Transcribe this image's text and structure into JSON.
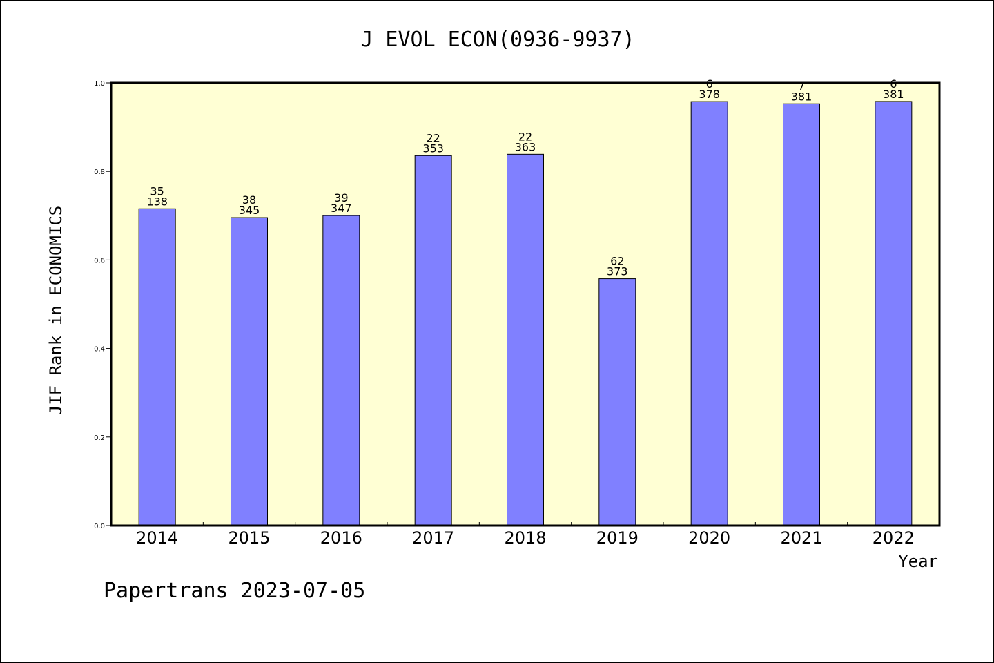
{
  "chart_data": {
    "type": "bar",
    "title": "J EVOL ECON(0936-9937)",
    "xlabel": "Year",
    "ylabel": "JIF Rank in ECONOMICS",
    "ylim": [
      0,
      1.0
    ],
    "yticks": [
      "0.0",
      "0.2",
      "0.4",
      "0.6",
      "0.8",
      "1.0"
    ],
    "categories": [
      "2014",
      "2015",
      "2016",
      "2017",
      "2018",
      "2019",
      "2020",
      "2021",
      "2022"
    ],
    "values": [
      0.7156,
      0.6957,
      0.7003,
      0.8357,
      0.8388,
      0.5576,
      0.9577,
      0.9528,
      0.958
    ],
    "rank": [
      "35",
      "38",
      "39",
      "22",
      "22",
      "62",
      "6",
      "7",
      "6"
    ],
    "total": [
      "138",
      "345",
      "347",
      "353",
      "363",
      "373",
      "378",
      "381",
      "381"
    ],
    "grid": false,
    "colors": {
      "plot_bg": "#ffffd4",
      "bar": "#8080ff"
    }
  },
  "footer": "Papertrans 2023-07-05"
}
